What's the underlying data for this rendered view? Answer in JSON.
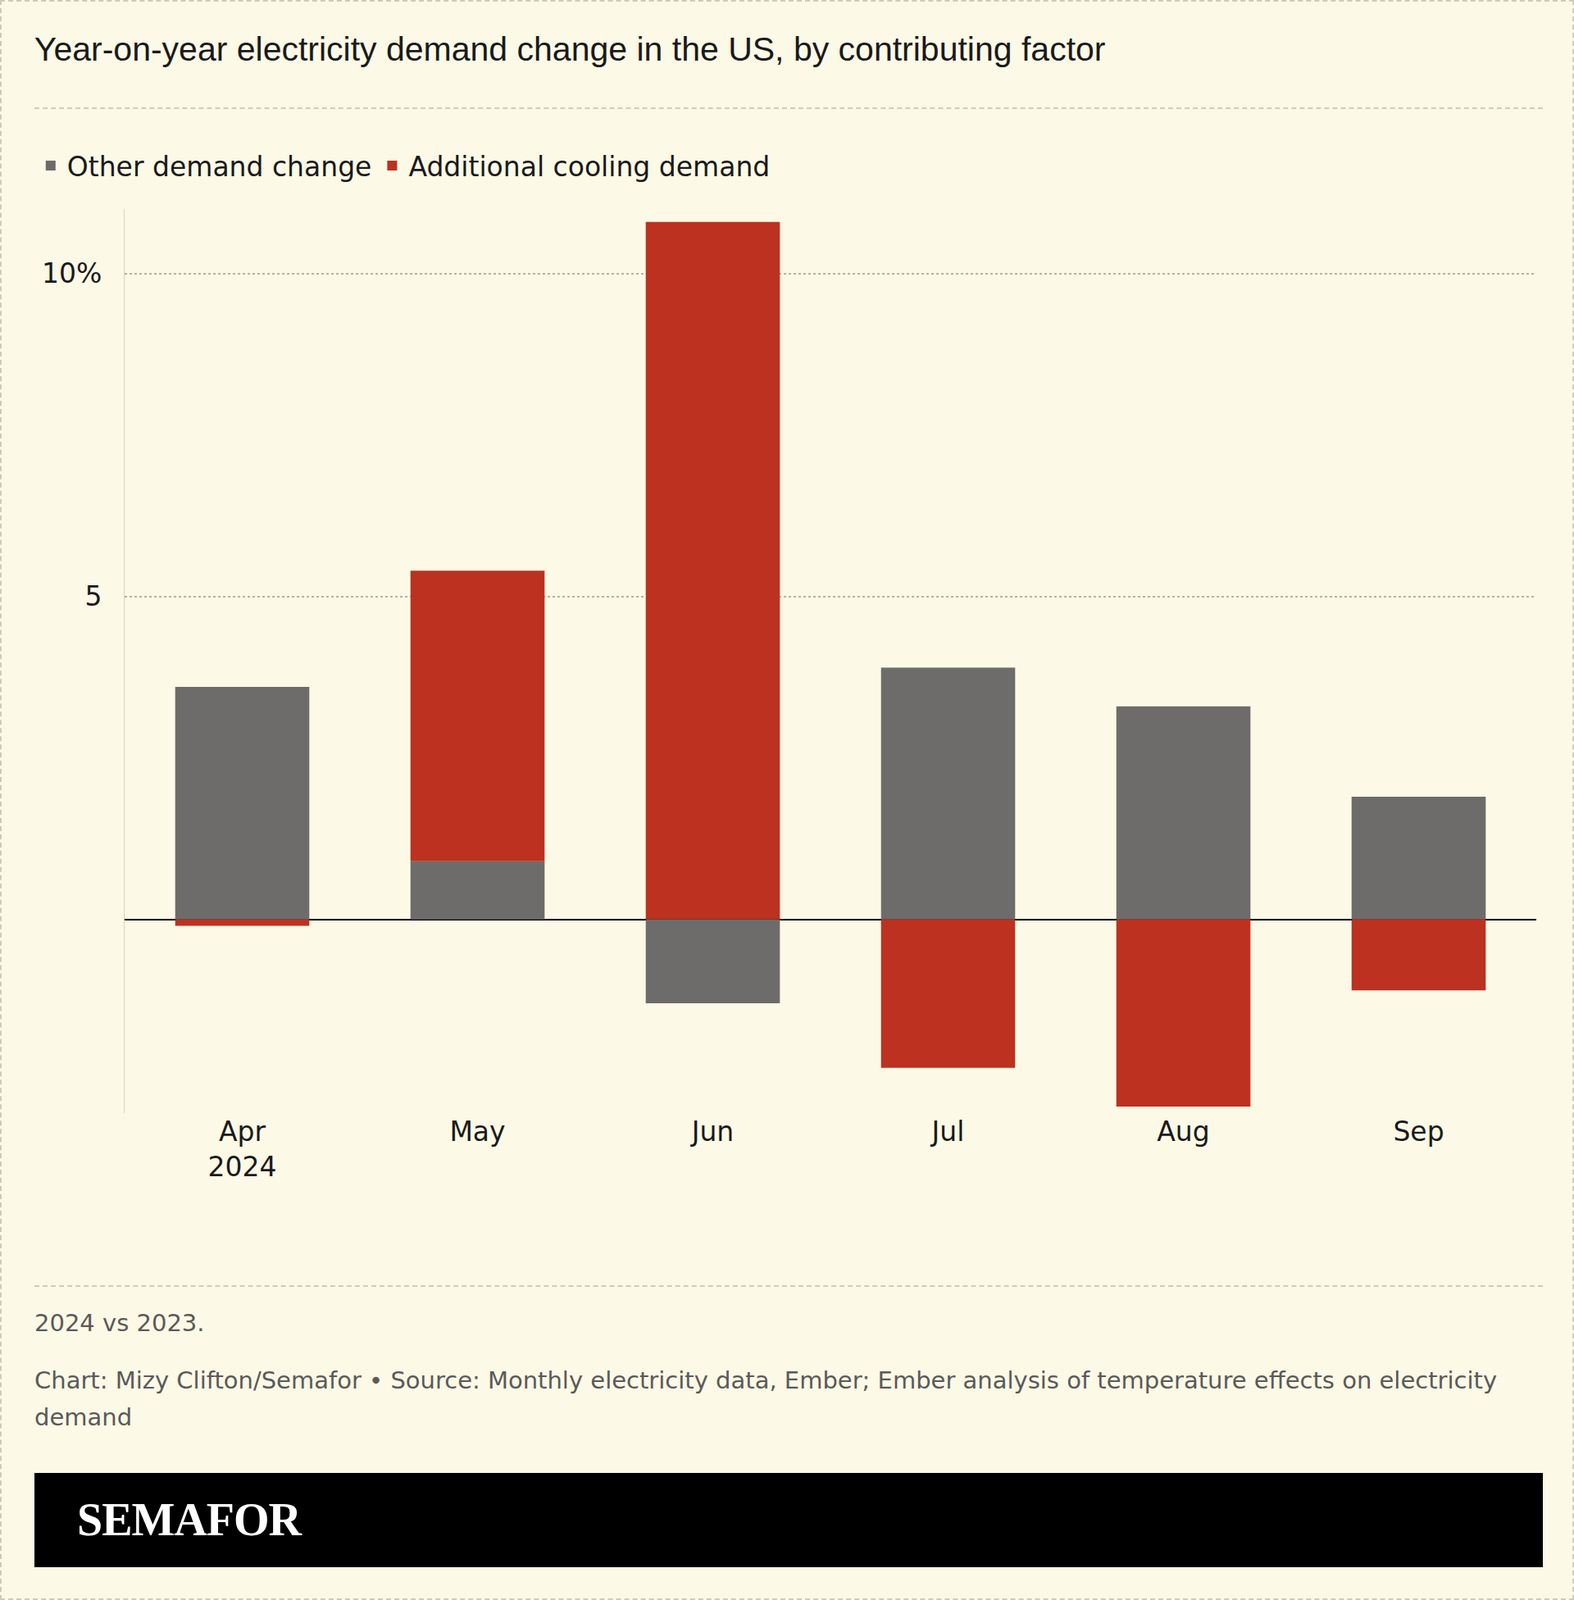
{
  "chart_data": {
    "type": "bar",
    "title": "Year-on-year electricity demand change in the US, by contributing factor",
    "categories": [
      "Apr\n2024",
      "May",
      "Jun",
      "Jul",
      "Aug",
      "Sep"
    ],
    "series": [
      {
        "name": "Other demand change",
        "color": "#6d6c6a",
        "values": [
          3.6,
          0.9,
          -1.3,
          3.9,
          3.3,
          1.9
        ]
      },
      {
        "name": "Additional cooling demand",
        "color": "#bc3120",
        "values": [
          -0.1,
          4.5,
          10.8,
          -2.3,
          -2.9,
          -1.1
        ]
      }
    ],
    "stacked": true,
    "ylim": [
      -3,
      11
    ],
    "yticks": [
      5,
      {
        "value": 10,
        "label": "10%"
      }
    ],
    "grid": true,
    "legend": "top-left"
  },
  "footer": {
    "note": "2024 vs 2023.",
    "source": "Chart: Mizy Clifton/Semafor • Source: Monthly electricity data, Ember; Ember analysis of temperature effects on electricity demand",
    "brand": "SEMAFOR"
  }
}
